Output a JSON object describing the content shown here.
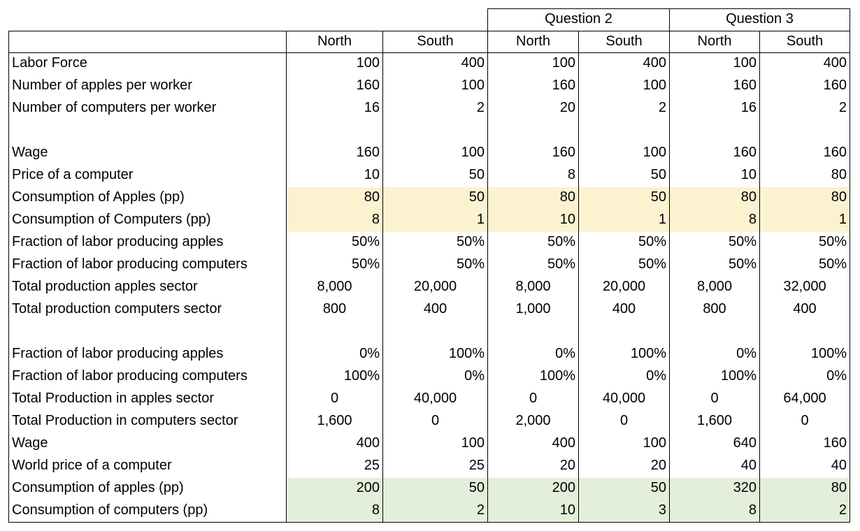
{
  "groups": [
    "Question 2",
    "Question 3"
  ],
  "columns": [
    "North",
    "South",
    "North",
    "South",
    "North",
    "South"
  ],
  "rows": [
    {
      "label": "Labor Force",
      "values": [
        "100",
        "400",
        "100",
        "400",
        "100",
        "400"
      ],
      "align": "r"
    },
    {
      "label": "Number of apples per worker",
      "values": [
        "160",
        "100",
        "160",
        "100",
        "160",
        "160"
      ],
      "align": "r"
    },
    {
      "label": "Number of computers per worker",
      "values": [
        "16",
        "2",
        "20",
        "2",
        "16",
        "2"
      ],
      "align": "r"
    },
    {
      "label": "",
      "values": [
        "",
        "",
        "",
        "",
        "",
        ""
      ],
      "align": "r"
    },
    {
      "label": "Wage",
      "values": [
        "160",
        "100",
        "160",
        "100",
        "160",
        "160"
      ],
      "align": "r"
    },
    {
      "label": "Price of a computer",
      "values": [
        "10",
        "50",
        "8",
        "50",
        "10",
        "80"
      ],
      "align": "r"
    },
    {
      "label": "Consumption of Apples (pp)",
      "values": [
        "80",
        "50",
        "80",
        "50",
        "80",
        "80"
      ],
      "align": "r",
      "highlight": "yellow"
    },
    {
      "label": "Consumption of Computers (pp)",
      "values": [
        "8",
        "1",
        "10",
        "1",
        "8",
        "1"
      ],
      "align": "r",
      "highlight": "yellow"
    },
    {
      "label": "Fraction of labor producing apples",
      "values": [
        "50%",
        "50%",
        "50%",
        "50%",
        "50%",
        "50%"
      ],
      "align": "r"
    },
    {
      "label": "Fraction of labor producing computers",
      "values": [
        "50%",
        "50%",
        "50%",
        "50%",
        "50%",
        "50%"
      ],
      "align": "r"
    },
    {
      "label": "Total production apples sector",
      "values": [
        "8,000",
        "20,000",
        "8,000",
        "20,000",
        "8,000",
        "32,000"
      ],
      "align": "c"
    },
    {
      "label": "Total production computers sector",
      "values": [
        "800",
        "400",
        "1,000",
        "400",
        "800",
        "400"
      ],
      "align": "c"
    },
    {
      "label": "",
      "values": [
        "",
        "",
        "",
        "",
        "",
        ""
      ],
      "align": "r"
    },
    {
      "label": "Fraction of labor producing apples",
      "values": [
        "0%",
        "100%",
        "0%",
        "100%",
        "0%",
        "100%"
      ],
      "align": "r"
    },
    {
      "label": "Fraction of labor producing computers",
      "values": [
        "100%",
        "0%",
        "100%",
        "0%",
        "100%",
        "0%"
      ],
      "align": "r"
    },
    {
      "label": "Total Production in apples sector",
      "values": [
        "0",
        "40,000",
        "0",
        "40,000",
        "0",
        "64,000"
      ],
      "align": "c"
    },
    {
      "label": "Total Production in computers sector",
      "values": [
        "1,600",
        "0",
        "2,000",
        "0",
        "1,600",
        "0"
      ],
      "align": "c"
    },
    {
      "label": "Wage",
      "values": [
        "400",
        "100",
        "400",
        "100",
        "640",
        "160"
      ],
      "align": "r"
    },
    {
      "label": "World price of a computer",
      "values": [
        "25",
        "25",
        "20",
        "20",
        "40",
        "40"
      ],
      "align": "r"
    },
    {
      "label": "Consumption of apples (pp)",
      "values": [
        "200",
        "50",
        "200",
        "50",
        "320",
        "80"
      ],
      "align": "r",
      "highlight": "green"
    },
    {
      "label": "Consumption of computers (pp)",
      "values": [
        "8",
        "2",
        "10",
        "3",
        "8",
        "2"
      ],
      "align": "r",
      "highlight": "green"
    }
  ]
}
